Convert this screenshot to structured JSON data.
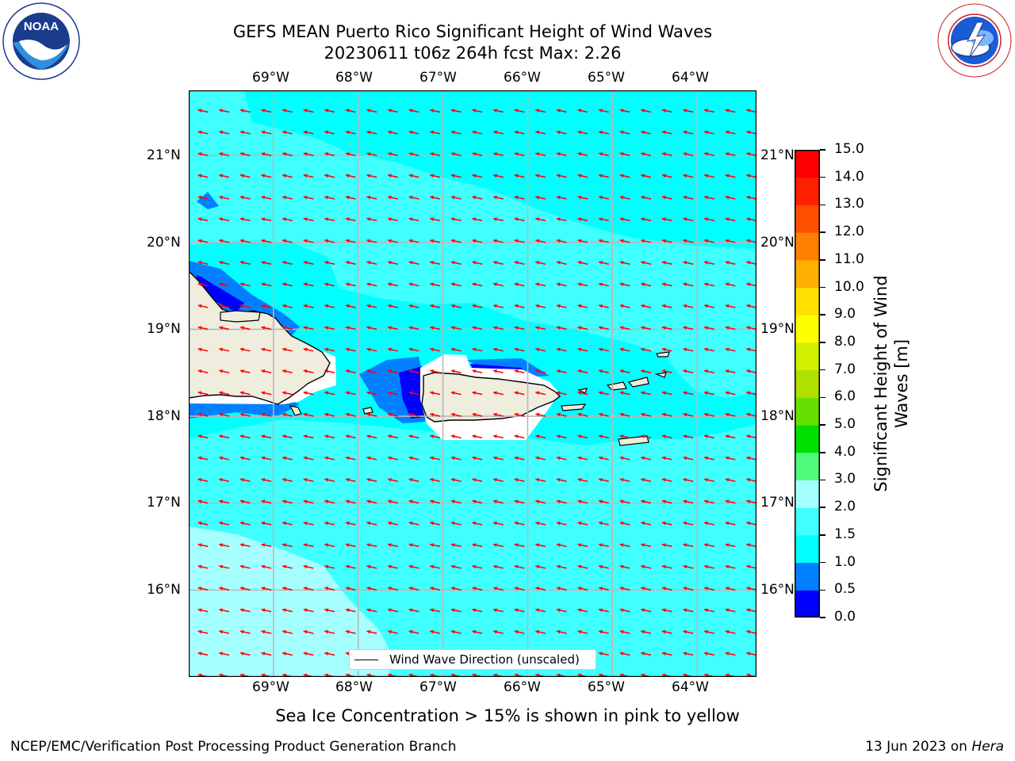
{
  "title": {
    "line1": "GEFS MEAN Puerto Rico Significant Height of Wind Waves",
    "line2": "20230611 t06z 264h fcst   Max: 2.26"
  },
  "logos": {
    "left": {
      "name": "noaa-logo",
      "text": "NOAA",
      "ring_text": "NATIONAL OCEANIC AND ATMOSPHERIC ADMINISTRATION · U.S. DEPARTMENT OF COMMERCE"
    },
    "right": {
      "name": "nws-logo",
      "ring_text": "NATIONAL WEATHER SERVICE"
    }
  },
  "map": {
    "lon_labels": [
      "69°W",
      "68°W",
      "67°W",
      "66°W",
      "65°W",
      "64°W"
    ],
    "lat_labels": [
      "21°N",
      "20°N",
      "19°N",
      "18°N",
      "17°N",
      "16°N"
    ],
    "lon_range": [
      -70.0,
      -63.3
    ],
    "lat_range": [
      15.0,
      21.75
    ],
    "gridlines": true,
    "arrow_color": "#ff0000",
    "arrow_direction": "toward west, slightly north of west",
    "land_color": "#efedde",
    "ocean_dominant_color": "#3ffcfc"
  },
  "legend": {
    "label": "Wind Wave Direction (unscaled)",
    "placement": "lower center"
  },
  "colorbar": {
    "label": "Significant Height of Wind Waves [m]",
    "label_line1": "Significant Height of Wind",
    "label_line2": "Waves [m]",
    "ticks": [
      "0.0",
      "0.5",
      "1.0",
      "1.5",
      "2.0",
      "3.0",
      "4.0",
      "5.0",
      "6.0",
      "7.0",
      "8.0",
      "9.0",
      "10.0",
      "11.0",
      "12.0",
      "13.0",
      "14.0",
      "15.0"
    ],
    "colors": [
      "#0000ff",
      "#0080ff",
      "#00ffff",
      "#40ffff",
      "#a6ffff",
      "#50fa7b",
      "#00e000",
      "#66e000",
      "#b0e000",
      "#d0f000",
      "#ffff00",
      "#ffe000",
      "#ffb000",
      "#ff8000",
      "#ff5000",
      "#ff2000",
      "#ff0000"
    ]
  },
  "note": "Sea Ice Concentration > 15% is shown in pink to yellow",
  "footer": {
    "left": "NCEP/EMC/Verification Post Processing Product Generation Branch",
    "right_prefix": "13 Jun 2023 on ",
    "right_host": "Hera"
  }
}
